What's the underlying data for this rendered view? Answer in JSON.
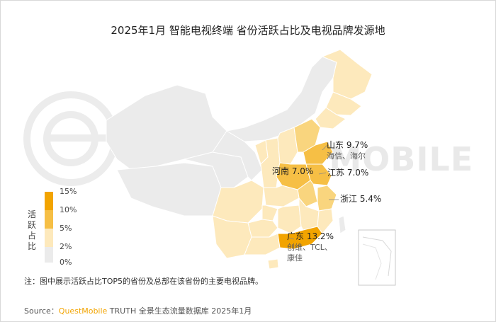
{
  "title": "2025年1月 智能电视终端 省份活跃占比及电视品牌发源地",
  "legend": {
    "title": "活跃占比",
    "ticks": [
      "15%",
      "10%",
      "5%",
      "2%",
      "0%"
    ],
    "colors": [
      "#f2a400",
      "#f6bf45",
      "#f9d57e",
      "#fde9bc",
      "#ebebeb"
    ]
  },
  "provinces": [
    {
      "name": "山东",
      "value": "9.7%",
      "brands": "海信、海尔"
    },
    {
      "name": "河南",
      "value": "7.0%",
      "brands": ""
    },
    {
      "name": "江苏",
      "value": "7.0%",
      "brands": ""
    },
    {
      "name": "浙江",
      "value": "5.4%",
      "brands": ""
    },
    {
      "name": "广东",
      "value": "13.2%",
      "brands": "创维、TCL、",
      "brands2": "康佳"
    }
  ],
  "watermark": "TMOBILE",
  "note": "注：图中展示活跃占比TOP5的省份及总部在该省份的主要电视品牌。",
  "source": {
    "prefix": "Source：",
    "brand": "QuestMobile",
    "suffix": " TRUTH 全景生态流量数据库 2025年1月"
  }
}
